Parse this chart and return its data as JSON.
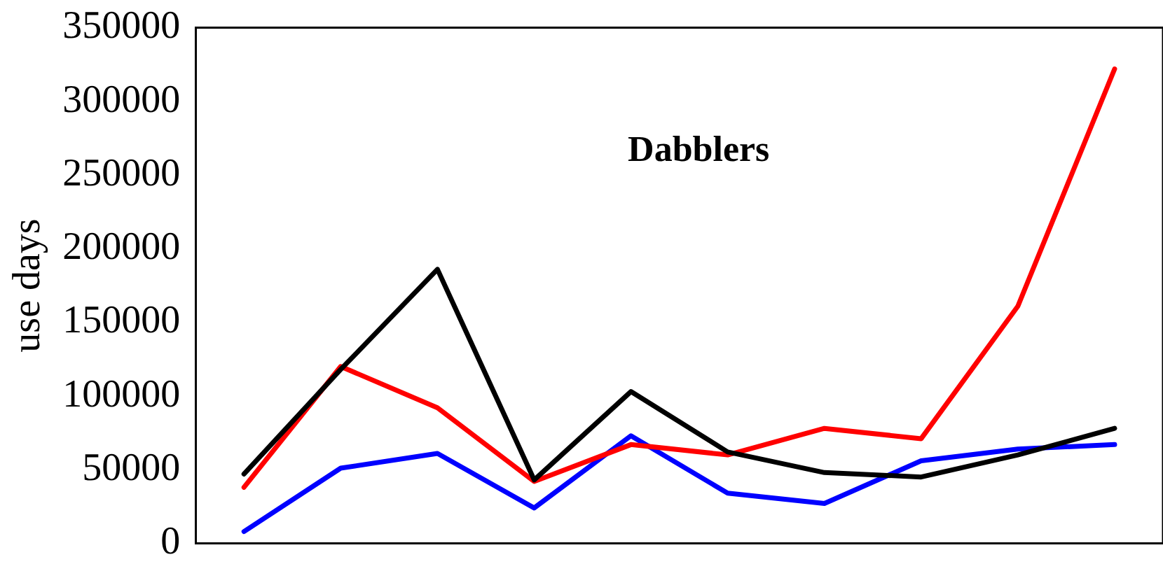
{
  "chart_data": {
    "type": "line",
    "ylabel": "use days",
    "annotations": [
      "Dabblers"
    ],
    "categories": [
      null,
      null,
      null,
      null,
      null,
      null,
      null,
      null,
      null,
      null
    ],
    "series": [
      {
        "color": "#000000",
        "values": [
          47000,
          118000,
          186000,
          43000,
          103000,
          62000,
          48000,
          45000,
          60000,
          78000
        ]
      },
      {
        "color": "#ff0000",
        "values": [
          38000,
          120000,
          92000,
          42000,
          67000,
          60000,
          78000,
          71000,
          161000,
          322000
        ]
      },
      {
        "color": "#0000ff",
        "values": [
          8000,
          51000,
          61000,
          24000,
          73000,
          34000,
          27000,
          56000,
          64000,
          67000
        ]
      }
    ],
    "ylim": [
      0,
      350000
    ],
    "yticks": [
      0,
      50000,
      100000,
      150000,
      200000,
      250000,
      300000,
      350000
    ],
    "grid": false,
    "legend": false,
    "marker": "none",
    "line_style": "solid",
    "tick_labels": "y"
  }
}
